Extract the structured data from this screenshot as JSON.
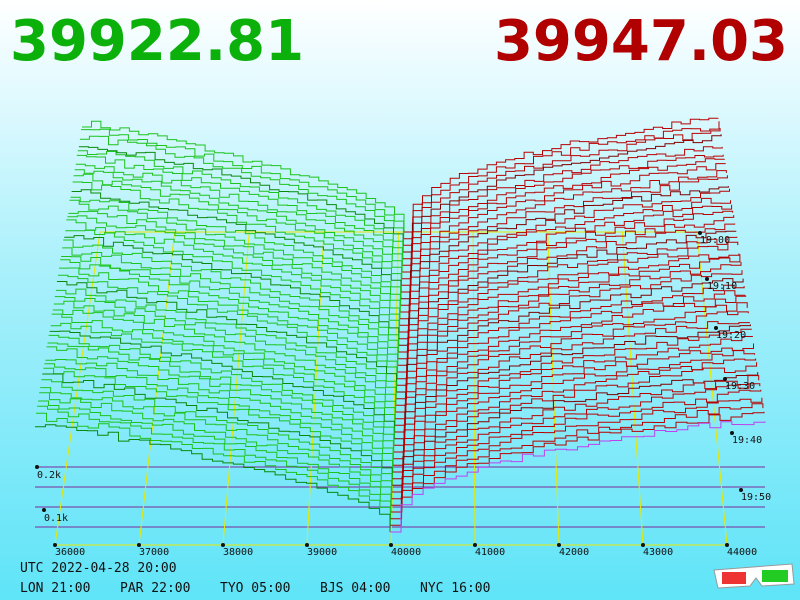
{
  "bid_price": "39922.81",
  "ask_price": "39947.03",
  "price_ticks": [
    36000,
    37000,
    38000,
    39000,
    40000,
    41000,
    42000,
    43000,
    44000
  ],
  "time_labels": [
    "19:00",
    "19:10",
    "19:20",
    "19:30",
    "19:40",
    "19:50"
  ],
  "depth_labels": [
    "0.2k",
    "0.1k"
  ],
  "utc": "UTC 2022-04-28 20:00",
  "clocks": [
    "LON 21:00",
    "PAR 22:00",
    "TYO 05:00",
    "BJS 04:00",
    "NYC 16:00"
  ]
}
